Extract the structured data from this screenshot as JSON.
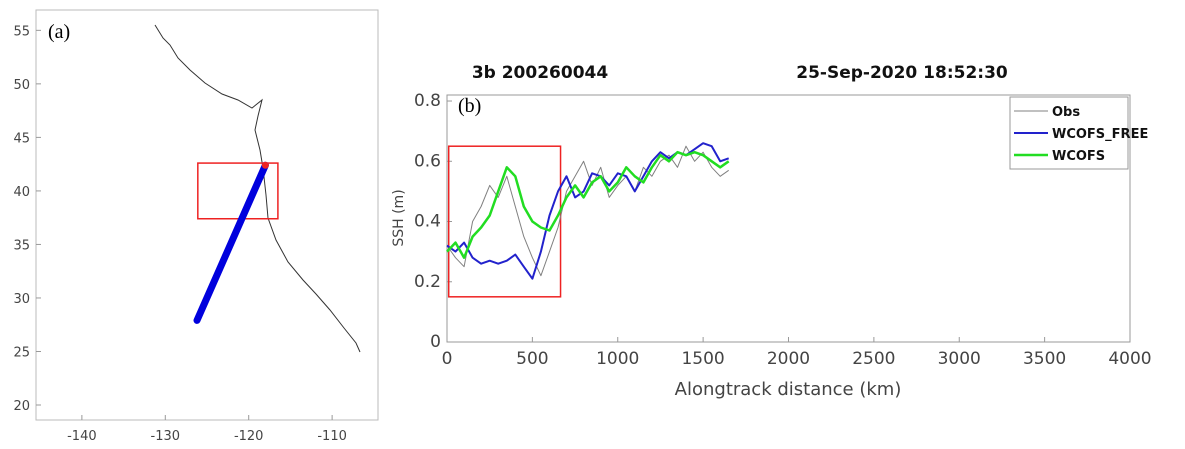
{
  "chart_data": [
    {
      "type": "map",
      "label": "(a)",
      "xlim": [
        -145.5,
        -104.5
      ],
      "xticks": [
        -140,
        -130,
        -120,
        -110
      ],
      "ylim": [
        18.6,
        56.9
      ],
      "yticks": [
        20,
        25,
        30,
        35,
        40,
        45,
        50,
        55
      ],
      "x": [
        -126.2,
        -118.0
      ],
      "series": [
        {
          "color": "#0000dd",
          "values": [
            27.9,
            42.4
          ]
        }
      ],
      "highlight": {
        "x": [
          -126.1,
          -116.5
        ],
        "y": [
          37.4,
          42.6
        ],
        "color": "#ee2222"
      }
    },
    {
      "type": "line",
      "label": "(b)",
      "title": "3b 200260044",
      "subtitle": "25-Sep-2020 18:52:30",
      "xlabel": "Alongtrack distance (km)",
      "ylabel": "SSH (m)",
      "xlim": [
        0,
        4000
      ],
      "xticks": [
        0,
        500,
        1000,
        1500,
        2000,
        2500,
        3000,
        3500,
        4000
      ],
      "ylim": [
        0,
        0.82
      ],
      "yticks": [
        0,
        0.2,
        0.4,
        0.6,
        0.8
      ],
      "x": [
        0,
        50,
        100,
        150,
        200,
        250,
        300,
        350,
        400,
        450,
        500,
        550,
        600,
        650,
        700,
        750,
        800,
        850,
        900,
        950,
        1000,
        1050,
        1100,
        1150,
        1200,
        1250,
        1300,
        1350,
        1400,
        1450,
        1500,
        1550,
        1600,
        1650
      ],
      "series": [
        {
          "name": "Obs",
          "color": "#808080",
          "width": 1,
          "values": [
            0.32,
            0.28,
            0.25,
            0.4,
            0.45,
            0.52,
            0.48,
            0.55,
            0.45,
            0.35,
            0.28,
            0.22,
            0.3,
            0.38,
            0.5,
            0.55,
            0.6,
            0.52,
            0.58,
            0.48,
            0.52,
            0.55,
            0.5,
            0.58,
            0.55,
            0.6,
            0.62,
            0.58,
            0.65,
            0.6,
            0.63,
            0.58,
            0.55,
            0.57
          ]
        },
        {
          "name": "WCOFS_FREE",
          "color": "#2222cc",
          "width": 2,
          "values": [
            0.32,
            0.3,
            0.33,
            0.28,
            0.26,
            0.27,
            0.26,
            0.27,
            0.29,
            0.25,
            0.21,
            0.3,
            0.42,
            0.5,
            0.55,
            0.48,
            0.5,
            0.56,
            0.55,
            0.52,
            0.56,
            0.55,
            0.5,
            0.55,
            0.6,
            0.63,
            0.61,
            0.63,
            0.62,
            0.64,
            0.66,
            0.65,
            0.6,
            0.61
          ]
        },
        {
          "name": "WCOFS",
          "color": "#22dd22",
          "width": 2.5,
          "values": [
            0.3,
            0.33,
            0.28,
            0.35,
            0.38,
            0.42,
            0.5,
            0.58,
            0.55,
            0.45,
            0.4,
            0.38,
            0.37,
            0.42,
            0.48,
            0.52,
            0.48,
            0.53,
            0.55,
            0.5,
            0.53,
            0.58,
            0.55,
            0.53,
            0.58,
            0.62,
            0.6,
            0.63,
            0.62,
            0.63,
            0.62,
            0.6,
            0.58,
            0.6
          ]
        }
      ],
      "highlight": {
        "x": [
          10,
          665
        ],
        "y": [
          0.15,
          0.65
        ],
        "color": "#ee2222"
      },
      "legend": "top-right"
    }
  ]
}
